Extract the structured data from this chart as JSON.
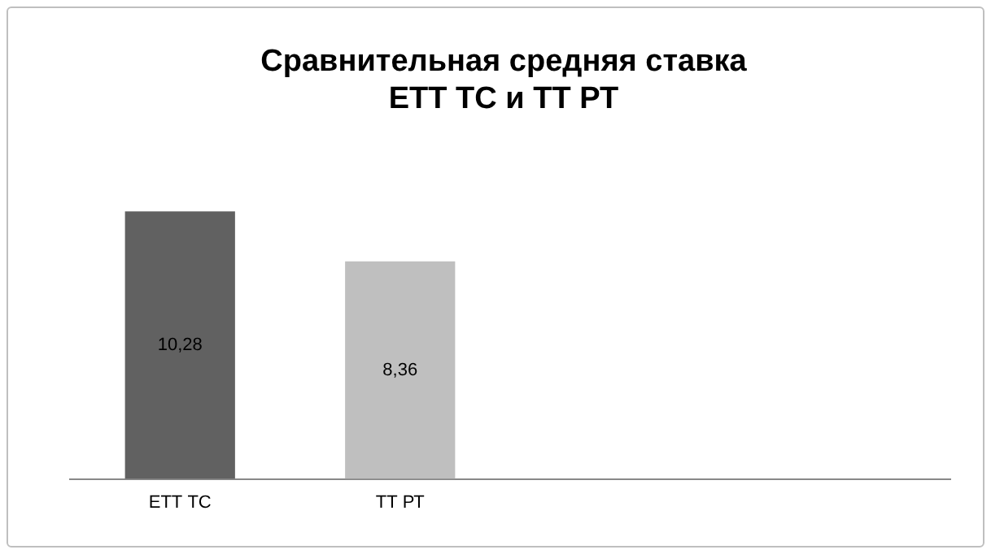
{
  "chart_data": {
    "type": "bar",
    "title": "Сравнительная средняя ставка\nЕТТ ТС и ТТ РТ",
    "categories": [
      "ЕТТ ТС",
      "ТТ РТ",
      null,
      null
    ],
    "values": [
      10.28,
      8.36,
      null,
      null
    ],
    "colors": [
      "#616161",
      "#bfbfbf",
      "#bfbfbf",
      "#bfbfbf"
    ],
    "value_labels": [
      "10,28",
      "8,36",
      null,
      null
    ],
    "grid": false,
    "legend": false
  }
}
